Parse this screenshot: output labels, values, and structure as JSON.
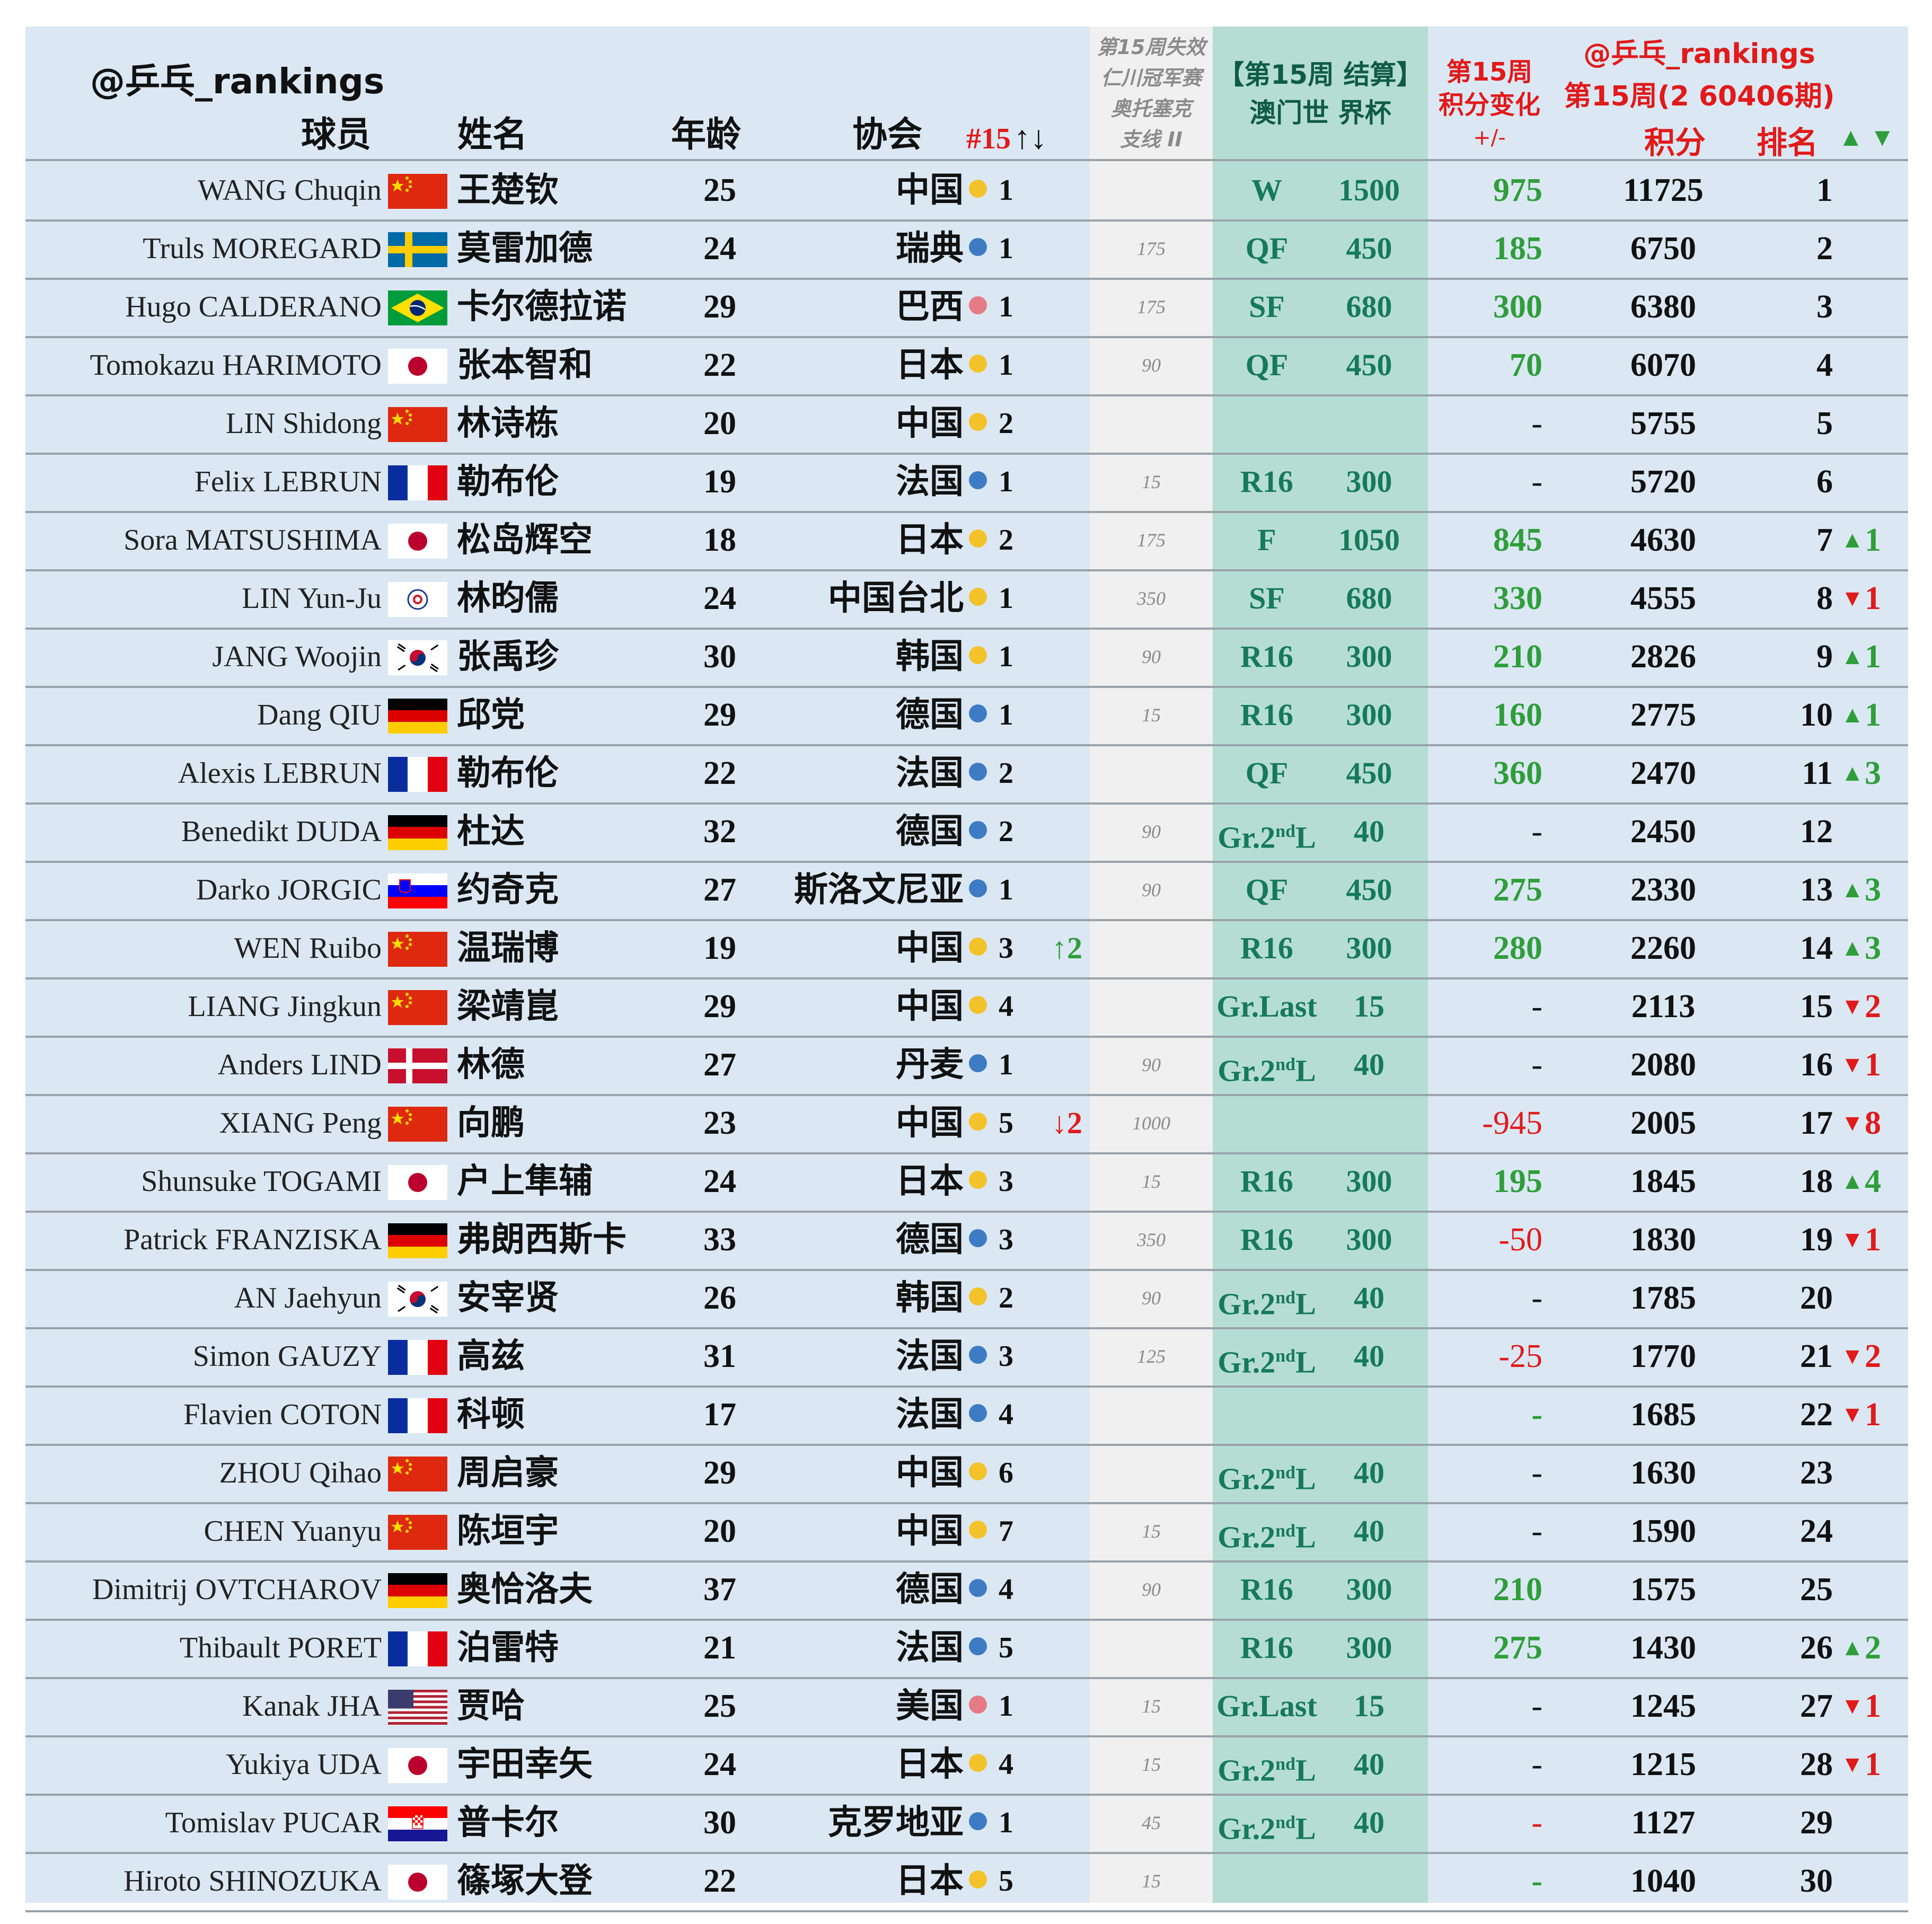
{
  "header": {
    "handle": "@乒乓_rankings",
    "col_player": "球员",
    "col_name": "姓名",
    "col_age": "年龄",
    "col_assoc": "协会",
    "col_rank15": "#15",
    "col_rank15_arrows": "↑↓",
    "expired_lines": [
      "第15周失效",
      "仁川冠军赛",
      "奥托塞克",
      "支线 II"
    ],
    "settle_lines": [
      "【第15周 结算】",
      "澳门世 界杯"
    ],
    "change_lines": [
      "第15周",
      "积分变化",
      "+/-"
    ],
    "right_lines": [
      "@乒乓_rankings",
      "第15周(2 60406期)"
    ],
    "col_points": "积分",
    "col_rank": "排名",
    "col_updown": "▲ ▼"
  },
  "colors": {
    "row_bg": "#dbe8f4",
    "expired_bg": "#f0f0f0",
    "settle_bg": "#b6ddd4",
    "green": "#2f9e3a",
    "red": "#e11a1a",
    "header_red": "#e11a1a",
    "assoc_yellow": "#f4c22a",
    "assoc_blue": "#3d7cc4",
    "assoc_pink": "#e57b85"
  },
  "players": [
    {
      "en": "WANG Chuqin",
      "flag": "cn",
      "cn": "王楚钦",
      "age": "25",
      "assoc": "中国",
      "dot": "yellow",
      "r15": "1",
      "move": "",
      "exp": "",
      "stage": "W",
      "pts": "1500",
      "chg": "975",
      "chg_color": "green",
      "total": "11725",
      "rank": "1",
      "dir": "",
      "rdelta": ""
    },
    {
      "en": "Truls MOREGARD",
      "flag": "se",
      "cn": "莫雷加德",
      "age": "24",
      "assoc": "瑞典",
      "dot": "blue",
      "r15": "1",
      "move": "",
      "exp": "175",
      "stage": "QF",
      "pts": "450",
      "chg": "185",
      "chg_color": "green",
      "total": "6750",
      "rank": "2",
      "dir": "",
      "rdelta": ""
    },
    {
      "en": "Hugo CALDERANO",
      "flag": "br",
      "cn": "卡尔德拉诺",
      "age": "29",
      "assoc": "巴西",
      "dot": "pink",
      "r15": "1",
      "move": "",
      "exp": "175",
      "stage": "SF",
      "pts": "680",
      "chg": "300",
      "chg_color": "green",
      "total": "6380",
      "rank": "3",
      "dir": "",
      "rdelta": ""
    },
    {
      "en": "Tomokazu HARIMOTO",
      "flag": "jp",
      "cn": "张本智和",
      "age": "22",
      "assoc": "日本",
      "dot": "yellow",
      "r15": "1",
      "move": "",
      "exp": "90",
      "stage": "QF",
      "pts": "450",
      "chg": "70",
      "chg_color": "green",
      "total": "6070",
      "rank": "4",
      "dir": "",
      "rdelta": ""
    },
    {
      "en": "LIN Shidong",
      "flag": "cn",
      "cn": "林诗栋",
      "age": "20",
      "assoc": "中国",
      "dot": "yellow",
      "r15": "2",
      "move": "",
      "exp": "",
      "stage": "",
      "pts": "",
      "chg": "-",
      "chg_color": "black",
      "total": "5755",
      "rank": "5",
      "dir": "",
      "rdelta": ""
    },
    {
      "en": "Felix LEBRUN",
      "flag": "fr",
      "cn": "勒布伦",
      "age": "19",
      "assoc": "法国",
      "dot": "blue",
      "r15": "1",
      "move": "",
      "exp": "15",
      "stage": "R16",
      "pts": "300",
      "chg": "-",
      "chg_color": "black",
      "total": "5720",
      "rank": "6",
      "dir": "",
      "rdelta": ""
    },
    {
      "en": "Sora MATSUSHIMA",
      "flag": "jp",
      "cn": "松岛辉空",
      "age": "18",
      "assoc": "日本",
      "dot": "yellow",
      "r15": "2",
      "move": "",
      "exp": "175",
      "stage": "F",
      "pts": "1050",
      "chg": "845",
      "chg_color": "green",
      "total": "4630",
      "rank": "7",
      "dir": "up",
      "rdelta": "1"
    },
    {
      "en": "LIN Yun-Ju",
      "flag": "tpe",
      "cn": "林昀儒",
      "age": "24",
      "assoc": "中国台北",
      "dot": "yellow",
      "r15": "1",
      "move": "",
      "exp": "350",
      "stage": "SF",
      "pts": "680",
      "chg": "330",
      "chg_color": "green",
      "total": "4555",
      "rank": "8",
      "dir": "down",
      "rdelta": "1"
    },
    {
      "en": "JANG Woojin",
      "flag": "kr",
      "cn": "张禹珍",
      "age": "30",
      "assoc": "韩国",
      "dot": "yellow",
      "r15": "1",
      "move": "",
      "exp": "90",
      "stage": "R16",
      "pts": "300",
      "chg": "210",
      "chg_color": "green",
      "total": "2826",
      "rank": "9",
      "dir": "up",
      "rdelta": "1"
    },
    {
      "en": "Dang QIU",
      "flag": "de",
      "cn": "邱党",
      "age": "29",
      "assoc": "德国",
      "dot": "blue",
      "r15": "1",
      "move": "",
      "exp": "15",
      "stage": "R16",
      "pts": "300",
      "chg": "160",
      "chg_color": "green",
      "total": "2775",
      "rank": "10",
      "dir": "up",
      "rdelta": "1"
    },
    {
      "en": "Alexis LEBRUN",
      "flag": "fr",
      "cn": "勒布伦",
      "age": "22",
      "assoc": "法国",
      "dot": "blue",
      "r15": "2",
      "move": "",
      "exp": "",
      "stage": "QF",
      "pts": "450",
      "chg": "360",
      "chg_color": "green",
      "total": "2470",
      "rank": "11",
      "dir": "up",
      "rdelta": "3"
    },
    {
      "en": "Benedikt DUDA",
      "flag": "de",
      "cn": "杜达",
      "age": "32",
      "assoc": "德国",
      "dot": "blue",
      "r15": "2",
      "move": "",
      "exp": "90",
      "stage": "Gr.2ndL",
      "pts": "40",
      "chg": "-",
      "chg_color": "black",
      "total": "2450",
      "rank": "12",
      "dir": "",
      "rdelta": ""
    },
    {
      "en": "Darko JORGIC",
      "flag": "si",
      "cn": "约奇克",
      "age": "27",
      "assoc": "斯洛文尼亚",
      "dot": "blue",
      "r15": "1",
      "move": "",
      "exp": "90",
      "stage": "QF",
      "pts": "450",
      "chg": "275",
      "chg_color": "green",
      "total": "2330",
      "rank": "13",
      "dir": "up",
      "rdelta": "3"
    },
    {
      "en": "WEN Ruibo",
      "flag": "cn",
      "cn": "温瑞博",
      "age": "19",
      "assoc": "中国",
      "dot": "yellow",
      "r15": "3",
      "move": "↑2",
      "exp": "",
      "stage": "R16",
      "pts": "300",
      "chg": "280",
      "chg_color": "green",
      "total": "2260",
      "rank": "14",
      "dir": "up",
      "rdelta": "3"
    },
    {
      "en": "LIANG Jingkun",
      "flag": "cn",
      "cn": "梁靖崑",
      "age": "29",
      "assoc": "中国",
      "dot": "yellow",
      "r15": "4",
      "move": "",
      "exp": "",
      "stage": "Gr.Last",
      "pts": "15",
      "chg": "-",
      "chg_color": "black",
      "total": "2113",
      "rank": "15",
      "dir": "down",
      "rdelta": "2"
    },
    {
      "en": "Anders LIND",
      "flag": "dk",
      "cn": "林德",
      "age": "27",
      "assoc": "丹麦",
      "dot": "blue",
      "r15": "1",
      "move": "",
      "exp": "90",
      "stage": "Gr.2ndL",
      "pts": "40",
      "chg": "-",
      "chg_color": "black",
      "total": "2080",
      "rank": "16",
      "dir": "down",
      "rdelta": "1"
    },
    {
      "en": "XIANG Peng",
      "flag": "cn",
      "cn": "向鹏",
      "age": "23",
      "assoc": "中国",
      "dot": "yellow",
      "r15": "5",
      "move": "↓2",
      "exp": "1000",
      "stage": "",
      "pts": "",
      "chg": "-945",
      "chg_color": "red",
      "total": "2005",
      "rank": "17",
      "dir": "down",
      "rdelta": "8"
    },
    {
      "en": "Shunsuke TOGAMI",
      "flag": "jp",
      "cn": "户上隼辅",
      "age": "24",
      "assoc": "日本",
      "dot": "yellow",
      "r15": "3",
      "move": "",
      "exp": "15",
      "stage": "R16",
      "pts": "300",
      "chg": "195",
      "chg_color": "green",
      "total": "1845",
      "rank": "18",
      "dir": "up",
      "rdelta": "4"
    },
    {
      "en": "Patrick FRANZISKA",
      "flag": "de",
      "cn": "弗朗西斯卡",
      "age": "33",
      "assoc": "德国",
      "dot": "blue",
      "r15": "3",
      "move": "",
      "exp": "350",
      "stage": "R16",
      "pts": "300",
      "chg": "-50",
      "chg_color": "red",
      "total": "1830",
      "rank": "19",
      "dir": "down",
      "rdelta": "1"
    },
    {
      "en": "AN Jaehyun",
      "flag": "kr",
      "cn": "安宰贤",
      "age": "26",
      "assoc": "韩国",
      "dot": "yellow",
      "r15": "2",
      "move": "",
      "exp": "90",
      "stage": "Gr.2ndL",
      "pts": "40",
      "chg": "-",
      "chg_color": "black",
      "total": "1785",
      "rank": "20",
      "dir": "",
      "rdelta": ""
    },
    {
      "en": "Simon GAUZY",
      "flag": "fr",
      "cn": "高兹",
      "age": "31",
      "assoc": "法国",
      "dot": "blue",
      "r15": "3",
      "move": "",
      "exp": "125",
      "stage": "Gr.2ndL",
      "pts": "40",
      "chg": "-25",
      "chg_color": "red",
      "total": "1770",
      "rank": "21",
      "dir": "down",
      "rdelta": "2"
    },
    {
      "en": "Flavien COTON",
      "flag": "fr",
      "cn": "科顿",
      "age": "17",
      "assoc": "法国",
      "dot": "blue",
      "r15": "4",
      "move": "",
      "exp": "",
      "stage": "",
      "pts": "",
      "chg": "-",
      "chg_color": "green",
      "total": "1685",
      "rank": "22",
      "dir": "down",
      "rdelta": "1"
    },
    {
      "en": "ZHOU Qihao",
      "flag": "cn",
      "cn": "周启豪",
      "age": "29",
      "assoc": "中国",
      "dot": "yellow",
      "r15": "6",
      "move": "",
      "exp": "",
      "stage": "Gr.2ndL",
      "pts": "40",
      "chg": "-",
      "chg_color": "black",
      "total": "1630",
      "rank": "23",
      "dir": "",
      "rdelta": ""
    },
    {
      "en": "CHEN Yuanyu",
      "flag": "cn",
      "cn": "陈垣宇",
      "age": "20",
      "assoc": "中国",
      "dot": "yellow",
      "r15": "7",
      "move": "",
      "exp": "15",
      "stage": "Gr.2ndL",
      "pts": "40",
      "chg": "-",
      "chg_color": "black",
      "total": "1590",
      "rank": "24",
      "dir": "",
      "rdelta": ""
    },
    {
      "en": "Dimitrij OVTCHAROV",
      "flag": "de",
      "cn": "奥恰洛夫",
      "age": "37",
      "assoc": "德国",
      "dot": "blue",
      "r15": "4",
      "move": "",
      "exp": "90",
      "stage": "R16",
      "pts": "300",
      "chg": "210",
      "chg_color": "green",
      "total": "1575",
      "rank": "25",
      "dir": "",
      "rdelta": ""
    },
    {
      "en": "Thibault PORET",
      "flag": "fr",
      "cn": "泊雷特",
      "age": "21",
      "assoc": "法国",
      "dot": "blue",
      "r15": "5",
      "move": "",
      "exp": "",
      "stage": "R16",
      "pts": "300",
      "chg": "275",
      "chg_color": "green",
      "total": "1430",
      "rank": "26",
      "dir": "up",
      "rdelta": "2"
    },
    {
      "en": "Kanak JHA",
      "flag": "us",
      "cn": "贾哈",
      "age": "25",
      "assoc": "美国",
      "dot": "pink",
      "r15": "1",
      "move": "",
      "exp": "15",
      "stage": "Gr.Last",
      "pts": "15",
      "chg": "-",
      "chg_color": "black",
      "total": "1245",
      "rank": "27",
      "dir": "down",
      "rdelta": "1"
    },
    {
      "en": "Yukiya UDA",
      "flag": "jp",
      "cn": "宇田幸矢",
      "age": "24",
      "assoc": "日本",
      "dot": "yellow",
      "r15": "4",
      "move": "",
      "exp": "15",
      "stage": "Gr.2ndL",
      "pts": "40",
      "chg": "-",
      "chg_color": "black",
      "total": "1215",
      "rank": "28",
      "dir": "down",
      "rdelta": "1"
    },
    {
      "en": "Tomislav PUCAR",
      "flag": "hr",
      "cn": "普卡尔",
      "age": "30",
      "assoc": "克罗地亚",
      "dot": "blue",
      "r15": "1",
      "move": "",
      "exp": "45",
      "stage": "Gr.2ndL",
      "pts": "40",
      "chg": "-",
      "chg_color": "red",
      "total": "1127",
      "rank": "29",
      "dir": "",
      "rdelta": ""
    },
    {
      "en": "Hiroto SHINOZUKA",
      "flag": "jp",
      "cn": "篠塚大登",
      "age": "22",
      "assoc": "日本",
      "dot": "yellow",
      "r15": "5",
      "move": "",
      "exp": "15",
      "stage": "",
      "pts": "",
      "chg": "-",
      "chg_color": "green",
      "total": "1040",
      "rank": "30",
      "dir": "",
      "rdelta": ""
    }
  ]
}
